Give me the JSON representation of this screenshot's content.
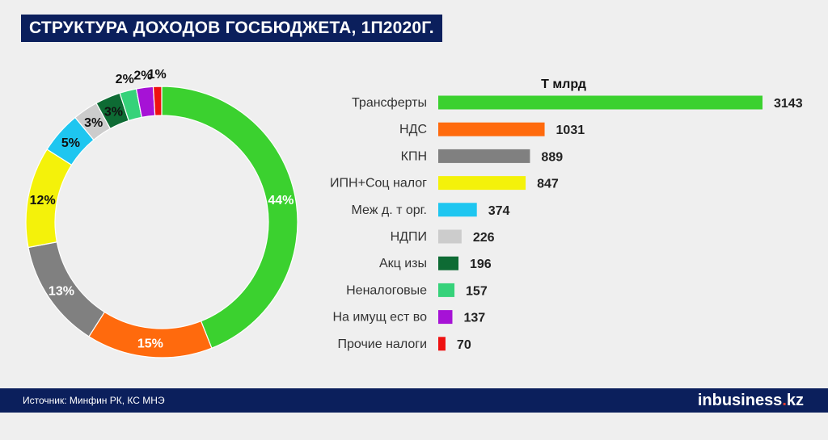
{
  "header": {
    "title": "СТРУКТУРА ДОХОДОВ ГОСБЮДЖЕТА, 1П2020Г."
  },
  "footer": {
    "source": "Источник: Минфин РК, КС МНЭ",
    "logo_prefix": "in",
    "logo_main": "business",
    "logo_dot": ".",
    "logo_suffix": "kz"
  },
  "colors": {
    "navy": "#0b1f5c",
    "Трансферты": "#3bd12f",
    "НДС": "#ff6a0d",
    "КПН": "#808080",
    "ИПН+Соц налог": "#f4f20a",
    "Меж д. т орг.": "#1ec6f0",
    "НДПИ": "#cccccc",
    "Акц изы": "#0e6b34",
    "Неналоговые": "#36d27a",
    "На имущ ест во": "#a612d6",
    "Прочие налоги": "#ee1111"
  },
  "chart_data": [
    {
      "type": "pie",
      "variant": "donut",
      "categories": [
        "Трансферты",
        "НДС",
        "КПН",
        "ИПН+Соц налог",
        "Меж д. т орг.",
        "НДПИ",
        "Акц изы",
        "Неналоговые",
        "На имущ ест во",
        "Прочие налоги"
      ],
      "values": [
        44,
        15,
        13,
        12,
        5,
        3,
        3,
        2,
        2,
        1
      ],
      "labels": [
        "44%",
        "15%",
        "13%",
        "12%",
        "5%",
        "3%",
        "3%",
        "2%",
        "2%",
        "1%"
      ]
    },
    {
      "type": "bar",
      "orientation": "horizontal",
      "title": "Т млрд",
      "categories": [
        "Трансферты",
        "НДС",
        "КПН",
        "ИПН+Соц налог",
        "Меж д. т орг.",
        "НДПИ",
        "Акц изы",
        "Неналоговые",
        "На имущ ест во",
        "Прочие налоги"
      ],
      "values": [
        3143,
        1031,
        889,
        847,
        374,
        226,
        196,
        157,
        137,
        70
      ],
      "labels": [
        "3143",
        "1031",
        "889",
        "847",
        "374",
        "226",
        "196",
        "157",
        "137",
        "70"
      ]
    }
  ]
}
